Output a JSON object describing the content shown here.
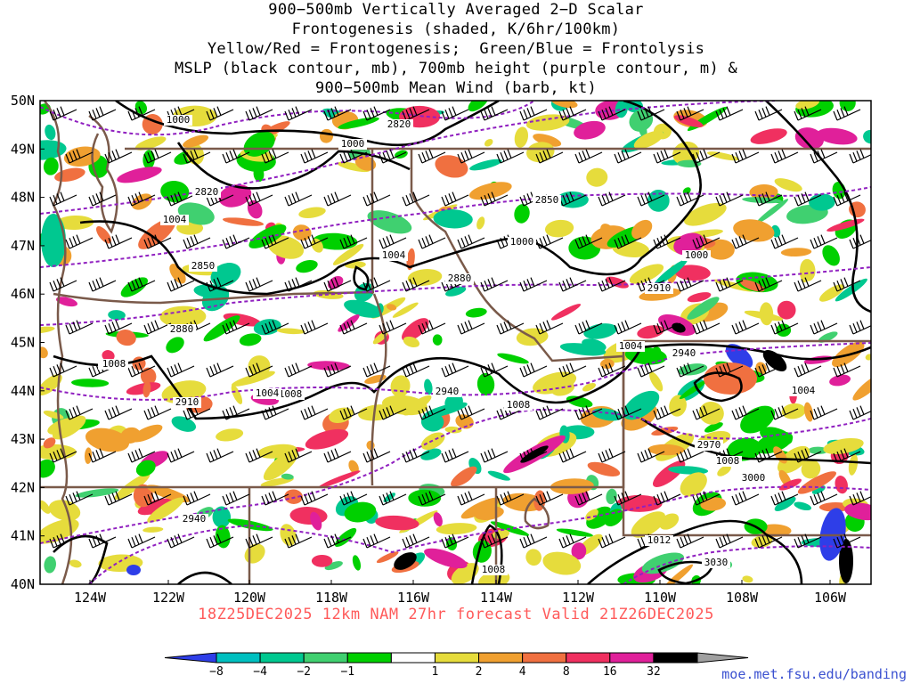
{
  "title_lines": [
    "900−500mb Vertically Averaged 2−D Scalar",
    "Frontogenesis (shaded, K/6hr/100km)",
    "Yellow/Red = Frontogenesis;  Green/Blue = Frontolysis",
    "MSLP (black contour, mb), 700mb height (purple contour, m) &",
    "900−500mb Mean Wind (barb, kt)"
  ],
  "map": {
    "lat_labels": [
      "50N",
      "49N",
      "48N",
      "47N",
      "46N",
      "45N",
      "44N",
      "43N",
      "42N",
      "41N",
      "40N"
    ],
    "lon_labels": [
      "124W",
      "122W",
      "120W",
      "118W",
      "116W",
      "114W",
      "112W",
      "110W",
      "108W",
      "106W"
    ],
    "mslp_labels": [
      "1000",
      "1000",
      "1004",
      "1004",
      "1000",
      "1000",
      "1004",
      "1008",
      "1008",
      "1008",
      "1004",
      "1008",
      "1008",
      "1012",
      "1008",
      "1004"
    ],
    "height_labels": [
      "2820",
      "2820",
      "2850",
      "2850",
      "2880",
      "2880",
      "2910",
      "2910",
      "2940",
      "2940",
      "2940",
      "2970",
      "3000",
      "3030"
    ]
  },
  "footer": {
    "run": "18Z25DEC2025",
    "model": "12km NAM 27hr forecast Valid",
    "valid": "21Z26DEC2025"
  },
  "legend": {
    "ticks": [
      "−8",
      "−4",
      "−2",
      "−1",
      "1",
      "2",
      "4",
      "8",
      "16",
      "32"
    ],
    "colors": [
      "#2e3ee8",
      "#00c0c0",
      "#00c890",
      "#40d070",
      "#00d000",
      "#ffffff",
      "#e6dc3c",
      "#f0a030",
      "#f07040",
      "#f03060",
      "#e0209a",
      "#000000",
      "#a0a0a0"
    ]
  },
  "credit": "moe.met.fsu.edu/banding",
  "colors": {
    "mslp": "#000000",
    "height": "#9020c0",
    "border": "#7a5a4a",
    "footer": "#ff5a5a"
  }
}
